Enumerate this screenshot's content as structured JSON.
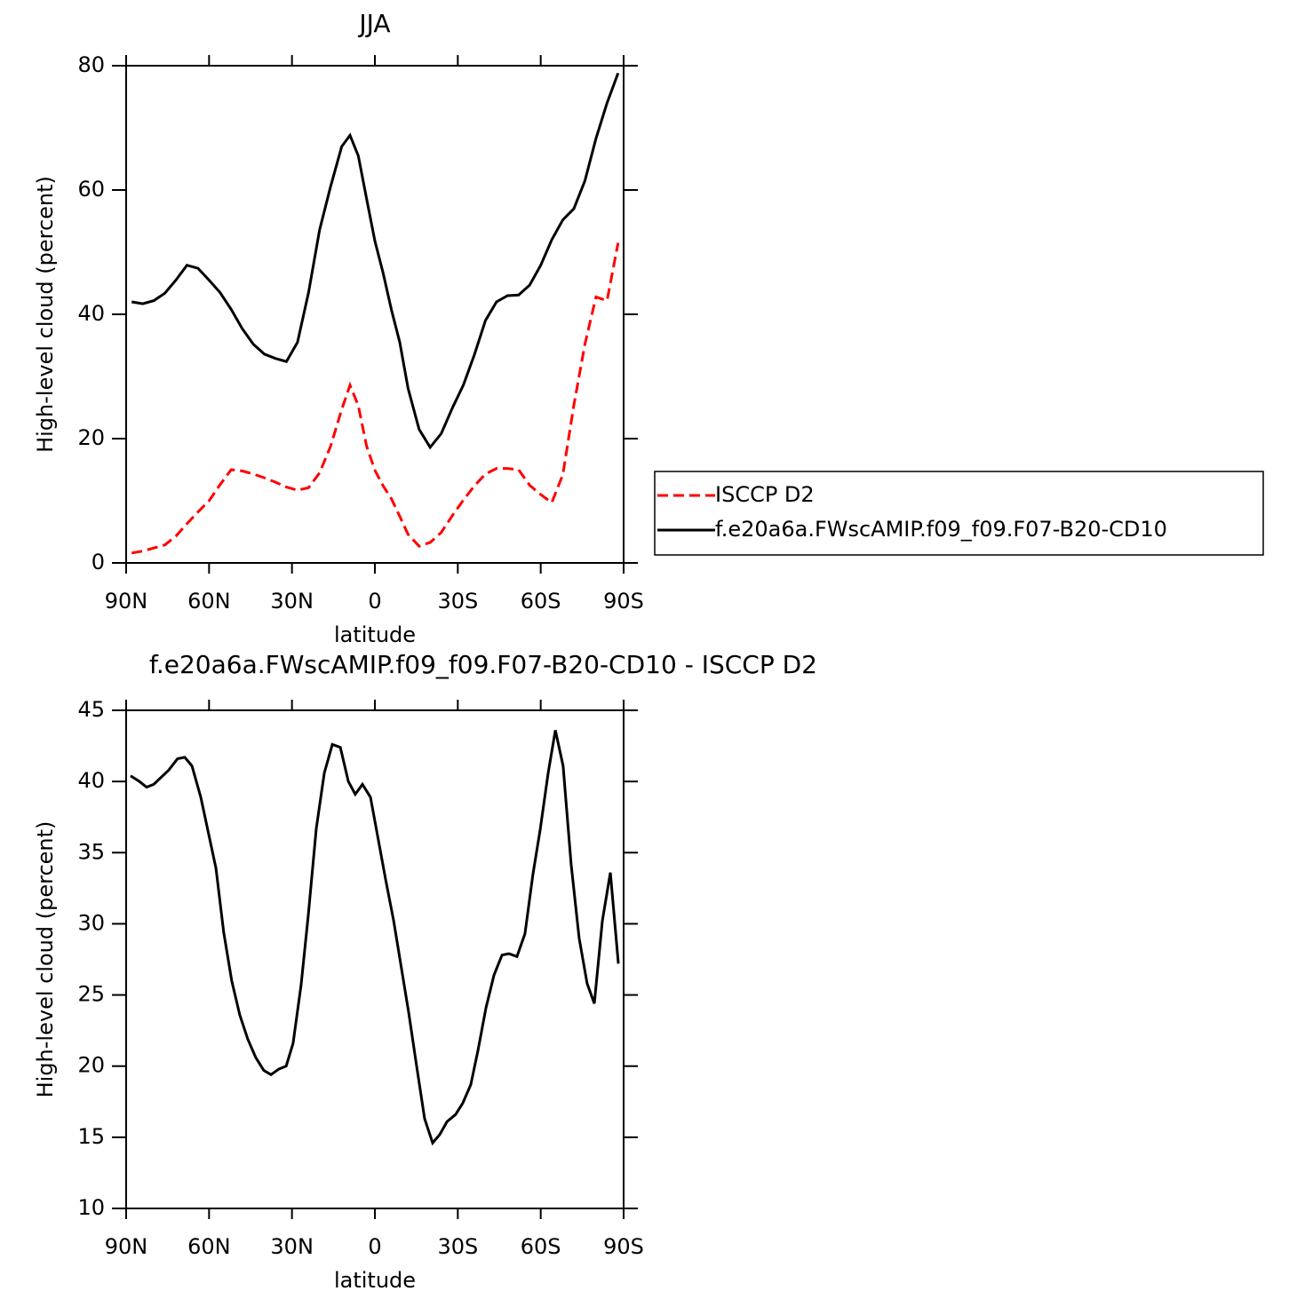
{
  "chart_data": [
    {
      "type": "line",
      "title": "JJA",
      "xlabel": "latitude",
      "ylabel": "High-level cloud (percent)",
      "x": [
        88,
        84,
        80,
        76,
        72,
        68,
        64,
        60,
        56,
        52,
        48,
        44,
        40,
        36,
        32,
        28,
        24,
        20,
        16,
        12,
        9,
        6,
        3,
        0,
        -3,
        -6,
        -9,
        -12,
        -16,
        -20,
        -24,
        -28,
        -32,
        -36,
        -40,
        -44,
        -48,
        -52,
        -56,
        -60,
        -64,
        -68,
        -72,
        -76,
        -80,
        -84,
        -88
      ],
      "series": [
        {
          "name": "ISCCP D2",
          "color": "#ff0000",
          "line_style": "dashed",
          "values": [
            1.6,
            1.9,
            2.4,
            2.9,
            4.3,
            6.3,
            8.2,
            10.0,
            12.6,
            15.0,
            14.8,
            14.3,
            13.7,
            13.0,
            12.2,
            11.7,
            12.1,
            14.5,
            18.8,
            24.7,
            28.6,
            25.3,
            18.8,
            14.9,
            12.4,
            10.3,
            7.5,
            4.6,
            2.7,
            3.3,
            4.9,
            7.6,
            10.1,
            12.4,
            14.3,
            15.2,
            15.2,
            15.0,
            12.5,
            11.0,
            9.7,
            14.2,
            25.4,
            35.2,
            42.8,
            42.2,
            51.5
          ]
        },
        {
          "name": "f.e20a6a.FWscAMIP.f09_f09.F07-B20-CD10",
          "color": "#000000",
          "line_style": "solid",
          "values": [
            42.0,
            41.7,
            42.2,
            43.4,
            45.5,
            47.9,
            47.4,
            45.5,
            43.5,
            40.8,
            37.7,
            35.2,
            33.6,
            32.9,
            32.4,
            35.5,
            43.5,
            53.6,
            60.6,
            67.0,
            68.8,
            65.5,
            58.6,
            51.8,
            46.6,
            40.7,
            35.5,
            28.1,
            21.5,
            18.6,
            20.8,
            24.9,
            28.6,
            33.5,
            39.0,
            42.0,
            43.0,
            43.1,
            44.7,
            47.9,
            52.0,
            55.2,
            57.0,
            61.5,
            68.3,
            74.0,
            78.8
          ]
        }
      ],
      "xlim": [
        90,
        -90
      ],
      "xticks": [
        {
          "value": 90,
          "label": "90N"
        },
        {
          "value": 60,
          "label": "60N"
        },
        {
          "value": 30,
          "label": "30N"
        },
        0,
        {
          "value": -30,
          "label": "30S"
        },
        {
          "value": -60,
          "label": "60S"
        },
        {
          "value": -90,
          "label": "90S"
        }
      ],
      "ylim": [
        0,
        80
      ],
      "yticks": [
        0,
        20,
        40,
        60,
        80
      ],
      "legend": "right",
      "grid": false
    },
    {
      "type": "line",
      "title": "f.e20a6a.FWscAMIP.f09_f09.F07-B20-CD10 - ISCCP D2",
      "xlabel": "latitude",
      "ylabel": "High-level cloud (percent)",
      "x": [
        88.4,
        85.2,
        82.6,
        80.0,
        74.6,
        71.4,
        68.8,
        66.2,
        63.0,
        57.5,
        54.7,
        51.8,
        48.9,
        46.0,
        43.1,
        40.2,
        37.6,
        34.7,
        32.1,
        29.6,
        26.7,
        24.1,
        21.2,
        18.3,
        15.4,
        12.5,
        9.6,
        7.1,
        4.5,
        1.6,
        -3.9,
        -6.8,
        -12.2,
        -15.1,
        -18.0,
        -20.9,
        -23.5,
        -26.1,
        -29.2,
        -31.8,
        -34.7,
        -37.3,
        -40.2,
        -43.1,
        -46.0,
        -48.5,
        -51.4,
        -54.3,
        -57.2,
        -59.8,
        -62.7,
        -65.3,
        -68.1,
        -71.0,
        -73.9,
        -76.8,
        -79.4,
        -82.3,
        -85.2,
        -88.1
      ],
      "values": [
        40.4,
        40.0,
        39.6,
        39.8,
        40.8,
        41.6,
        41.7,
        41.1,
        38.9,
        33.9,
        29.4,
        26.0,
        23.6,
        21.9,
        20.6,
        19.7,
        19.4,
        19.8,
        20.0,
        21.6,
        25.7,
        30.6,
        36.7,
        40.6,
        42.6,
        42.4,
        40.0,
        39.1,
        39.8,
        38.9,
        33.1,
        30.2,
        23.8,
        20.0,
        16.3,
        14.6,
        15.2,
        16.1,
        16.6,
        17.4,
        18.7,
        21.1,
        24.1,
        26.4,
        27.8,
        27.9,
        27.7,
        29.3,
        33.5,
        36.6,
        40.6,
        43.6,
        41.1,
        34.2,
        29.0,
        25.8,
        24.4,
        30.2,
        33.6,
        27.2
      ],
      "color": "#000000",
      "xlim": [
        90,
        -90
      ],
      "xticks": [
        {
          "value": 90,
          "label": "90N"
        },
        {
          "value": 60,
          "label": "60N"
        },
        {
          "value": 30,
          "label": "30N"
        },
        0,
        {
          "value": -30,
          "label": "30S"
        },
        {
          "value": -60,
          "label": "60S"
        },
        {
          "value": -90,
          "label": "90S"
        }
      ],
      "ylim": [
        10,
        45
      ],
      "yticks": [
        10,
        15,
        20,
        25,
        30,
        35,
        40,
        45
      ],
      "grid": false
    }
  ]
}
